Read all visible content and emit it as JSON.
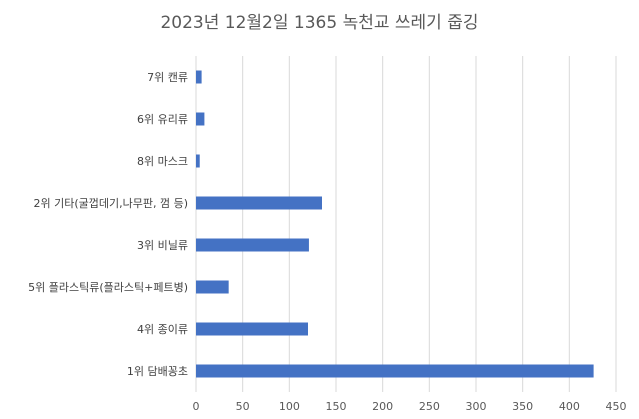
{
  "chart_data": {
    "type": "bar",
    "orientation": "horizontal",
    "title": "2023년 12월2일 1365 녹천교 쓰레기 줍깅",
    "categories": [
      "7위 캔류",
      "6위 유리류",
      "8위 마스크",
      "2위 기타(굴껍데기,나무판, 껌 등)",
      "3위 비닐류",
      "5위 플라스틱류(플라스틱+페트병)",
      "4위 종이류",
      "1위 담배꽁초"
    ],
    "values": [
      6,
      9,
      4,
      135,
      121,
      35,
      120,
      426
    ],
    "xlim": [
      0,
      450
    ],
    "xticks": [
      "0",
      "50",
      "100",
      "150",
      "200",
      "250",
      "300",
      "350",
      "400",
      "450"
    ],
    "grid": true,
    "legend": false,
    "colors": {
      "bar": "#4472c4",
      "grid": "#d9d9d9"
    }
  }
}
